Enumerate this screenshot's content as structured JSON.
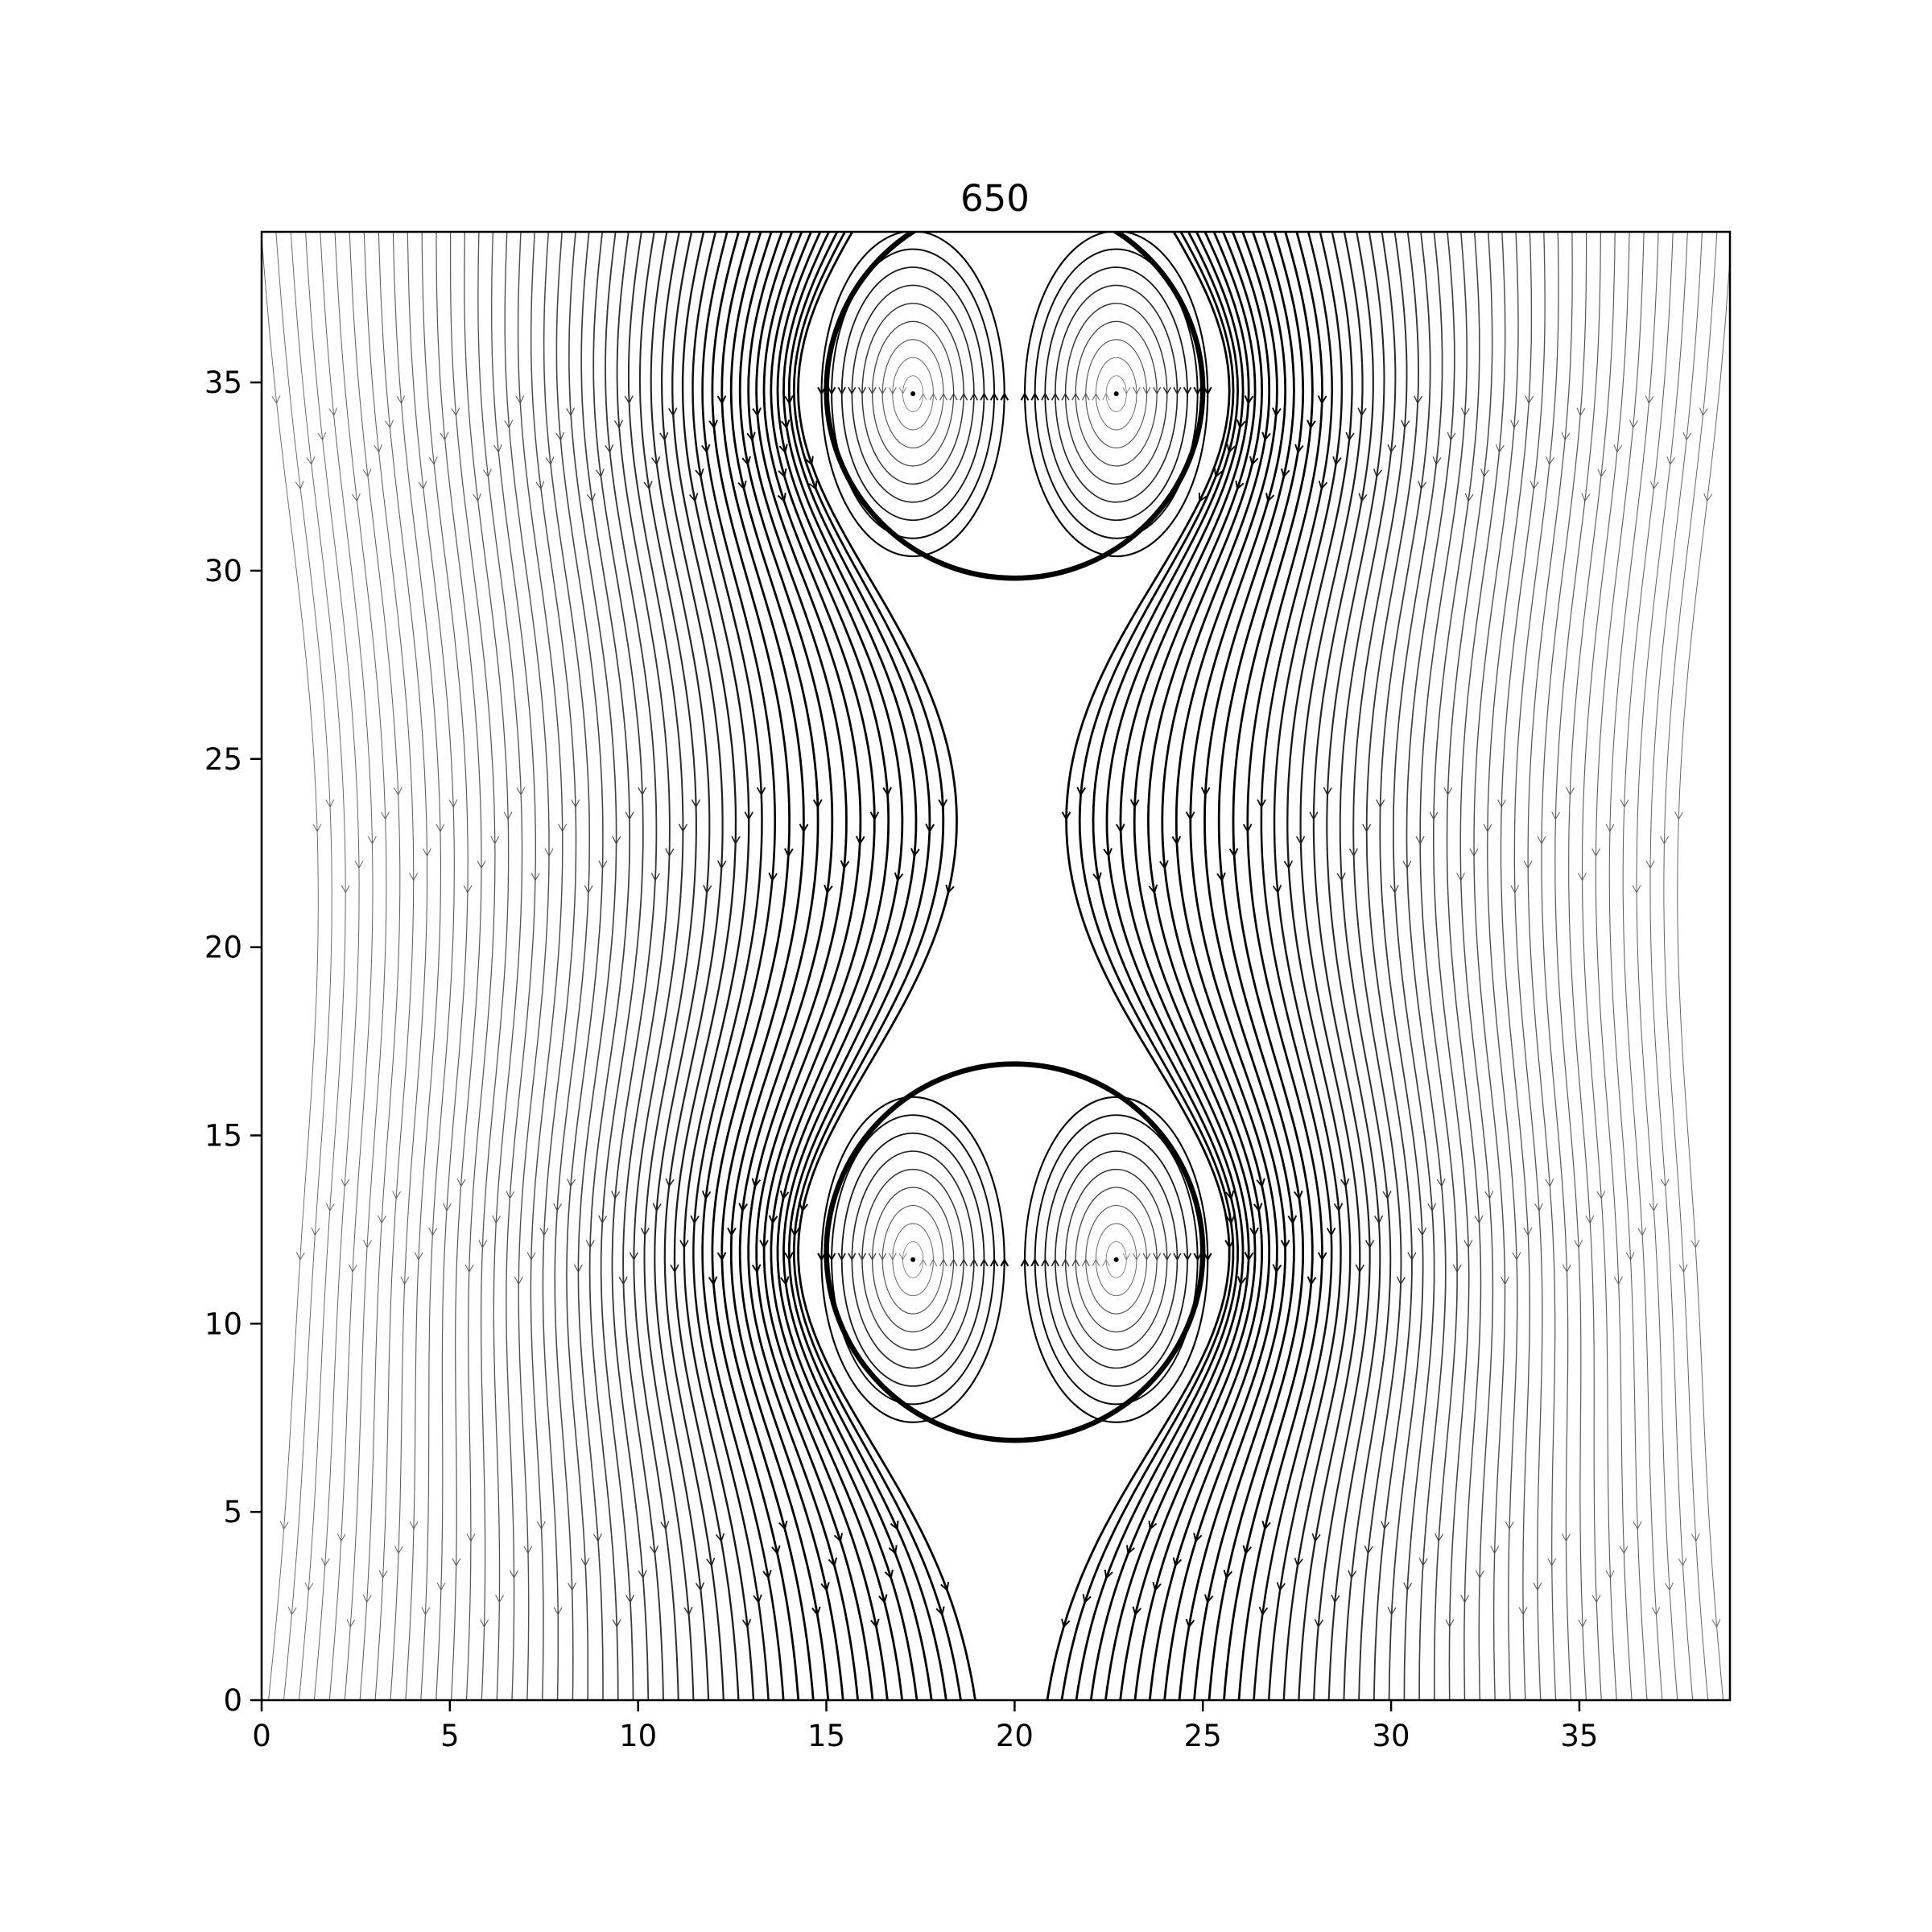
{
  "chart_data": {
    "type": "streamplot",
    "title": "650",
    "xlabel": "",
    "ylabel": "",
    "xlim": [
      0,
      39
    ],
    "ylim": [
      0,
      39
    ],
    "xticks": [
      0,
      5,
      10,
      15,
      20,
      25,
      30,
      35
    ],
    "yticks": [
      0,
      5,
      10,
      15,
      20,
      25,
      30,
      35
    ],
    "xtick_labels": [
      "0",
      "5",
      "10",
      "15",
      "20",
      "25",
      "30",
      "35"
    ],
    "ytick_labels": [
      "0",
      "5",
      "10",
      "15",
      "20",
      "25",
      "30",
      "35"
    ],
    "grid": false,
    "legend": "none",
    "flow_direction": "downward",
    "line_color": "#000000",
    "circles": [
      {
        "name": "upper-circle",
        "cx": 20,
        "cy": 34.8,
        "r": 5
      },
      {
        "name": "lower-circle",
        "cx": 20,
        "cy": 11.9,
        "r": 5
      }
    ],
    "vortex_centers": [
      {
        "x": 17.3,
        "y": 34.7,
        "rotation": "counterclockwise"
      },
      {
        "x": 22.7,
        "y": 34.7,
        "rotation": "clockwise"
      },
      {
        "x": 17.3,
        "y": 11.7,
        "rotation": "counterclockwise"
      },
      {
        "x": 22.7,
        "y": 11.7,
        "rotation": "clockwise"
      }
    ]
  }
}
